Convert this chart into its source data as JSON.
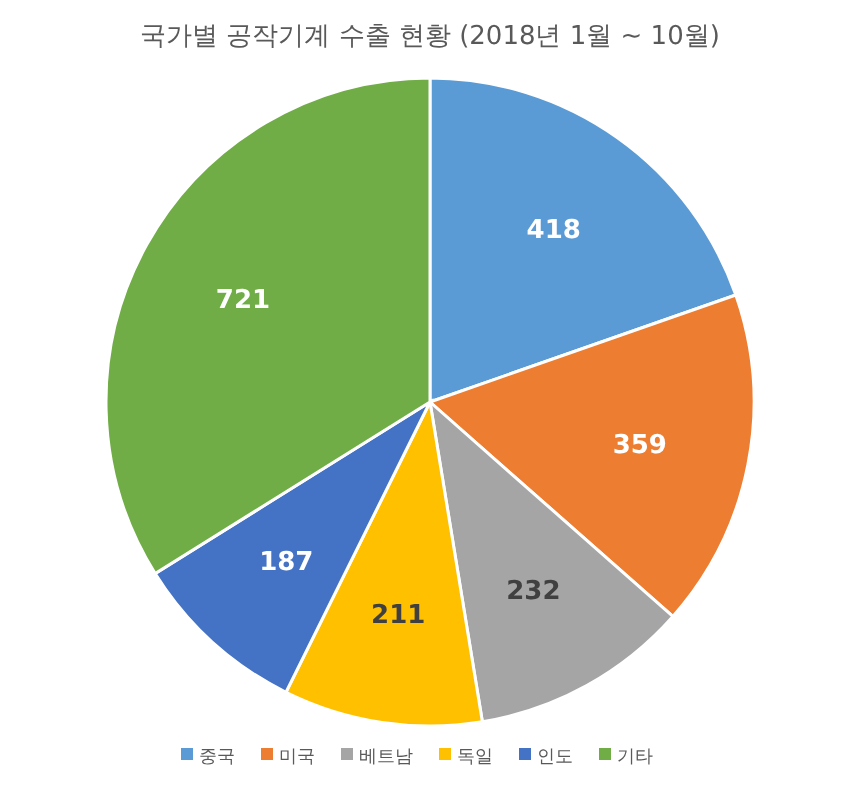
{
  "chart_data": {
    "type": "pie",
    "title": "국가별 공작기계 수출 현황 (2018년 1월 ~ 10월)",
    "categories": [
      "중국",
      "미국",
      "베트남",
      "독일",
      "인도",
      "기타"
    ],
    "values": [
      418,
      359,
      232,
      211,
      187,
      721
    ],
    "colors": [
      "#5b9bd5",
      "#ed7d31",
      "#a5a5a5",
      "#ffc000",
      "#4472c4",
      "#70ad47"
    ],
    "data_labels": true,
    "legend": "bottom"
  }
}
